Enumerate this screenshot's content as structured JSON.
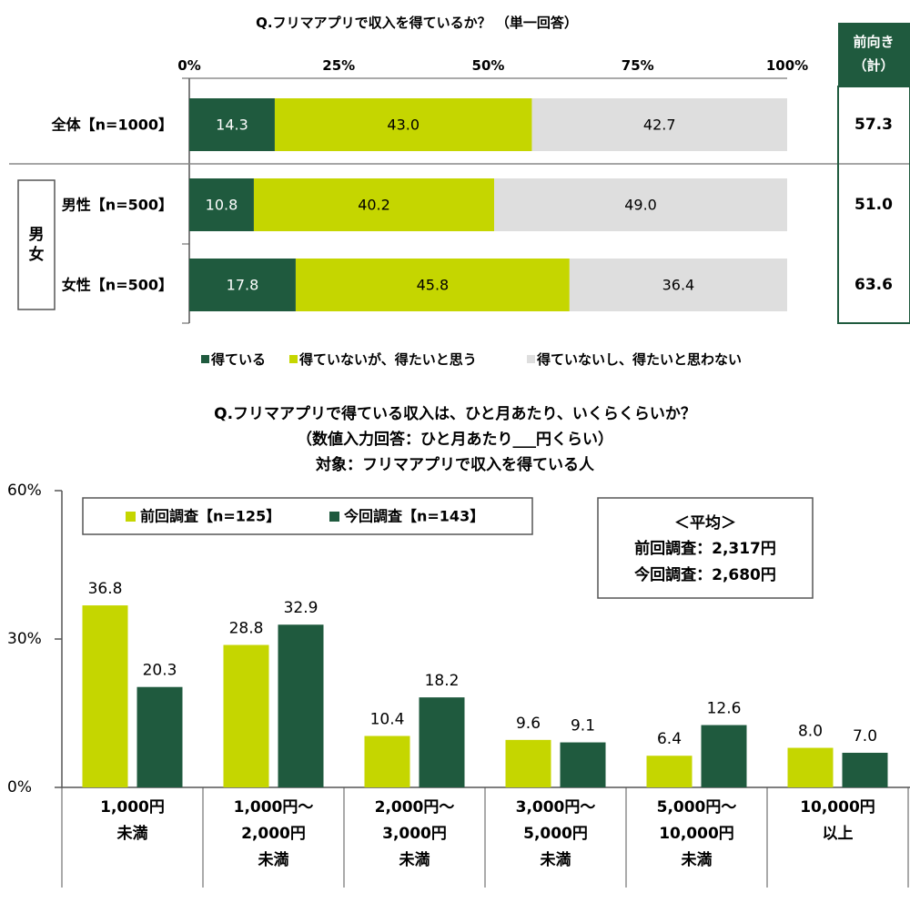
{
  "colors": {
    "dark_green": "#1f5a3e",
    "lime": "#c5d600",
    "light_gray": "#dedede",
    "axis": "#555555",
    "frame": "#555555"
  },
  "chart_data": [
    {
      "type": "bar",
      "orientation": "horizontal",
      "stacked": true,
      "title": "Q.フリマアプリで収入を得ているか？ （単一回答）",
      "xlim": [
        0,
        100
      ],
      "xticks": [
        "0%",
        "25%",
        "50%",
        "75%",
        "100%"
      ],
      "categories": [
        "全体【n=1000】",
        "男性【n=500】",
        "女性【n=500】"
      ],
      "group_label": "男女",
      "series": [
        {
          "name": "得ている",
          "color": "#1f5a3e",
          "values": [
            14.3,
            10.8,
            17.8
          ],
          "labels": [
            "14.3",
            "10.8",
            "17.8"
          ]
        },
        {
          "name": "得ていないが、得たいと思う",
          "color": "#c5d600",
          "values": [
            43.0,
            40.2,
            45.8
          ],
          "labels": [
            "43.0",
            "40.2",
            "45.8"
          ]
        },
        {
          "name": "得ていないし、得たいと思わない",
          "color": "#dedede",
          "values": [
            42.7,
            49.0,
            36.4
          ],
          "labels": [
            "42.7",
            "49.0",
            "36.4"
          ]
        }
      ],
      "total_box": {
        "header": [
          "前向き",
          "（計）"
        ],
        "values": [
          "57.3",
          "51.0",
          "63.6"
        ]
      }
    },
    {
      "type": "bar",
      "orientation": "vertical",
      "title": [
        "Q.フリマアプリで得ている収入は、ひと月あたり、いくらくらいか？",
        "（数値入力回答：ひと月あたり___円くらい）",
        "対象：フリマアプリで収入を得ている人"
      ],
      "ylim": [
        0,
        60
      ],
      "yticks": [
        "60%",
        "30%",
        "0%"
      ],
      "categories": [
        [
          "1,000円",
          "未満"
        ],
        [
          "1,000円～",
          "2,000円",
          "未満"
        ],
        [
          "2,000円～",
          "3,000円",
          "未満"
        ],
        [
          "3,000円～",
          "5,000円",
          "未満"
        ],
        [
          "5,000円～",
          "10,000円",
          "未満"
        ],
        [
          "10,000円",
          "以上"
        ]
      ],
      "series": [
        {
          "name": "前回調査【n=125】",
          "color": "#c5d600",
          "values": [
            36.8,
            28.8,
            10.4,
            9.6,
            6.4,
            8.0
          ],
          "labels": [
            "36.8",
            "28.8",
            "10.4",
            "9.6",
            "6.4",
            "8.0"
          ]
        },
        {
          "name": "今回調査【n=143】",
          "color": "#1f5a3e",
          "values": [
            20.3,
            32.9,
            18.2,
            9.1,
            12.6,
            7.0
          ],
          "labels": [
            "20.3",
            "32.9",
            "18.2",
            "9.1",
            "12.6",
            "7.0"
          ]
        }
      ],
      "average_box": [
        "＜平均＞",
        "前回調査：2,317円",
        "今回調査：2,680円"
      ]
    }
  ]
}
